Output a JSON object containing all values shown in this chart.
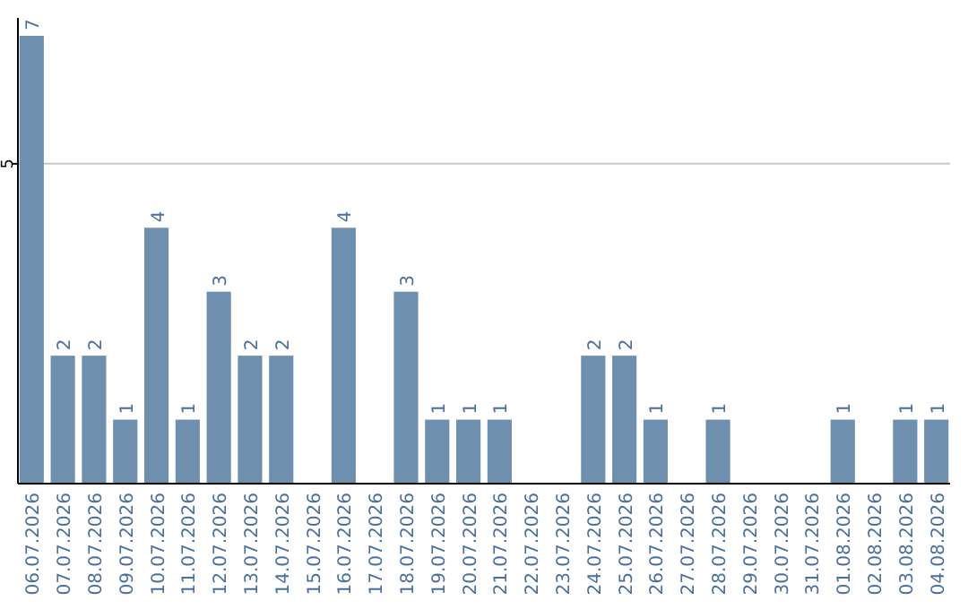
{
  "chart_data": {
    "type": "bar",
    "categories": [
      "06.07.2026",
      "07.07.2026",
      "08.07.2026",
      "09.07.2026",
      "10.07.2026",
      "11.07.2026",
      "12.07.2026",
      "13.07.2026",
      "14.07.2026",
      "15.07.2026",
      "16.07.2026",
      "17.07.2026",
      "18.07.2026",
      "19.07.2026",
      "20.07.2026",
      "21.07.2026",
      "22.07.2026",
      "23.07.2026",
      "24.07.2026",
      "25.07.2026",
      "26.07.2026",
      "27.07.2026",
      "28.07.2026",
      "29.07.2026",
      "30.07.2026",
      "31.07.2026",
      "01.08.2026",
      "02.08.2026",
      "03.08.2026",
      "04.08.2026"
    ],
    "values": [
      7,
      2,
      2,
      1,
      4,
      1,
      3,
      2,
      2,
      null,
      4,
      null,
      3,
      1,
      1,
      1,
      null,
      null,
      2,
      2,
      1,
      null,
      1,
      null,
      null,
      null,
      1,
      null,
      1,
      1
    ],
    "color": "#6f8fae",
    "ylim": [
      0,
      7
    ],
    "yticks": [
      5
    ],
    "grid": "y",
    "data_labels": true
  }
}
